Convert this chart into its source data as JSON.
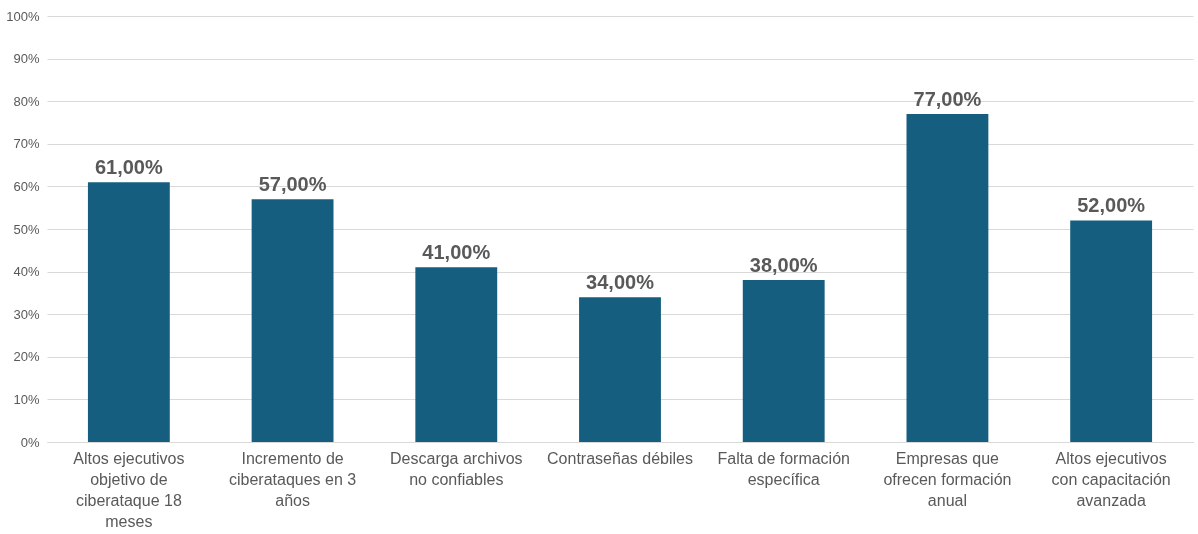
{
  "chart_data": {
    "type": "bar",
    "categories": [
      "Altos ejecutivos objetivo de ciberataque 18 meses",
      "Incremento de ciberataques en 3 años",
      "Descarga archivos no confiables",
      "Contraseñas débiles",
      "Falta de formación específica",
      "Empresas que ofrecen formación anual",
      "Altos ejecutivos con capacitación avanzada"
    ],
    "values": [
      61,
      57,
      41,
      34,
      38,
      77,
      52
    ],
    "value_labels": [
      "61,00%",
      "57,00%",
      "41,00%",
      "34,00%",
      "38,00%",
      "77,00%",
      "52,00%"
    ],
    "color": "#155e80",
    "ylim": [
      0,
      100
    ],
    "yticks": [
      {
        "value": 0,
        "label": "0%"
      },
      {
        "value": 10,
        "label": "10%"
      },
      {
        "value": 20,
        "label": "20%"
      },
      {
        "value": 30,
        "label": "30%"
      },
      {
        "value": 40,
        "label": "40%"
      },
      {
        "value": 50,
        "label": "50%"
      },
      {
        "value": 60,
        "label": "60%"
      },
      {
        "value": 70,
        "label": "70%"
      },
      {
        "value": 80,
        "label": "80%"
      },
      {
        "value": 90,
        "label": "90%"
      },
      {
        "value": 100,
        "label": "100%"
      }
    ],
    "grid": "y"
  }
}
